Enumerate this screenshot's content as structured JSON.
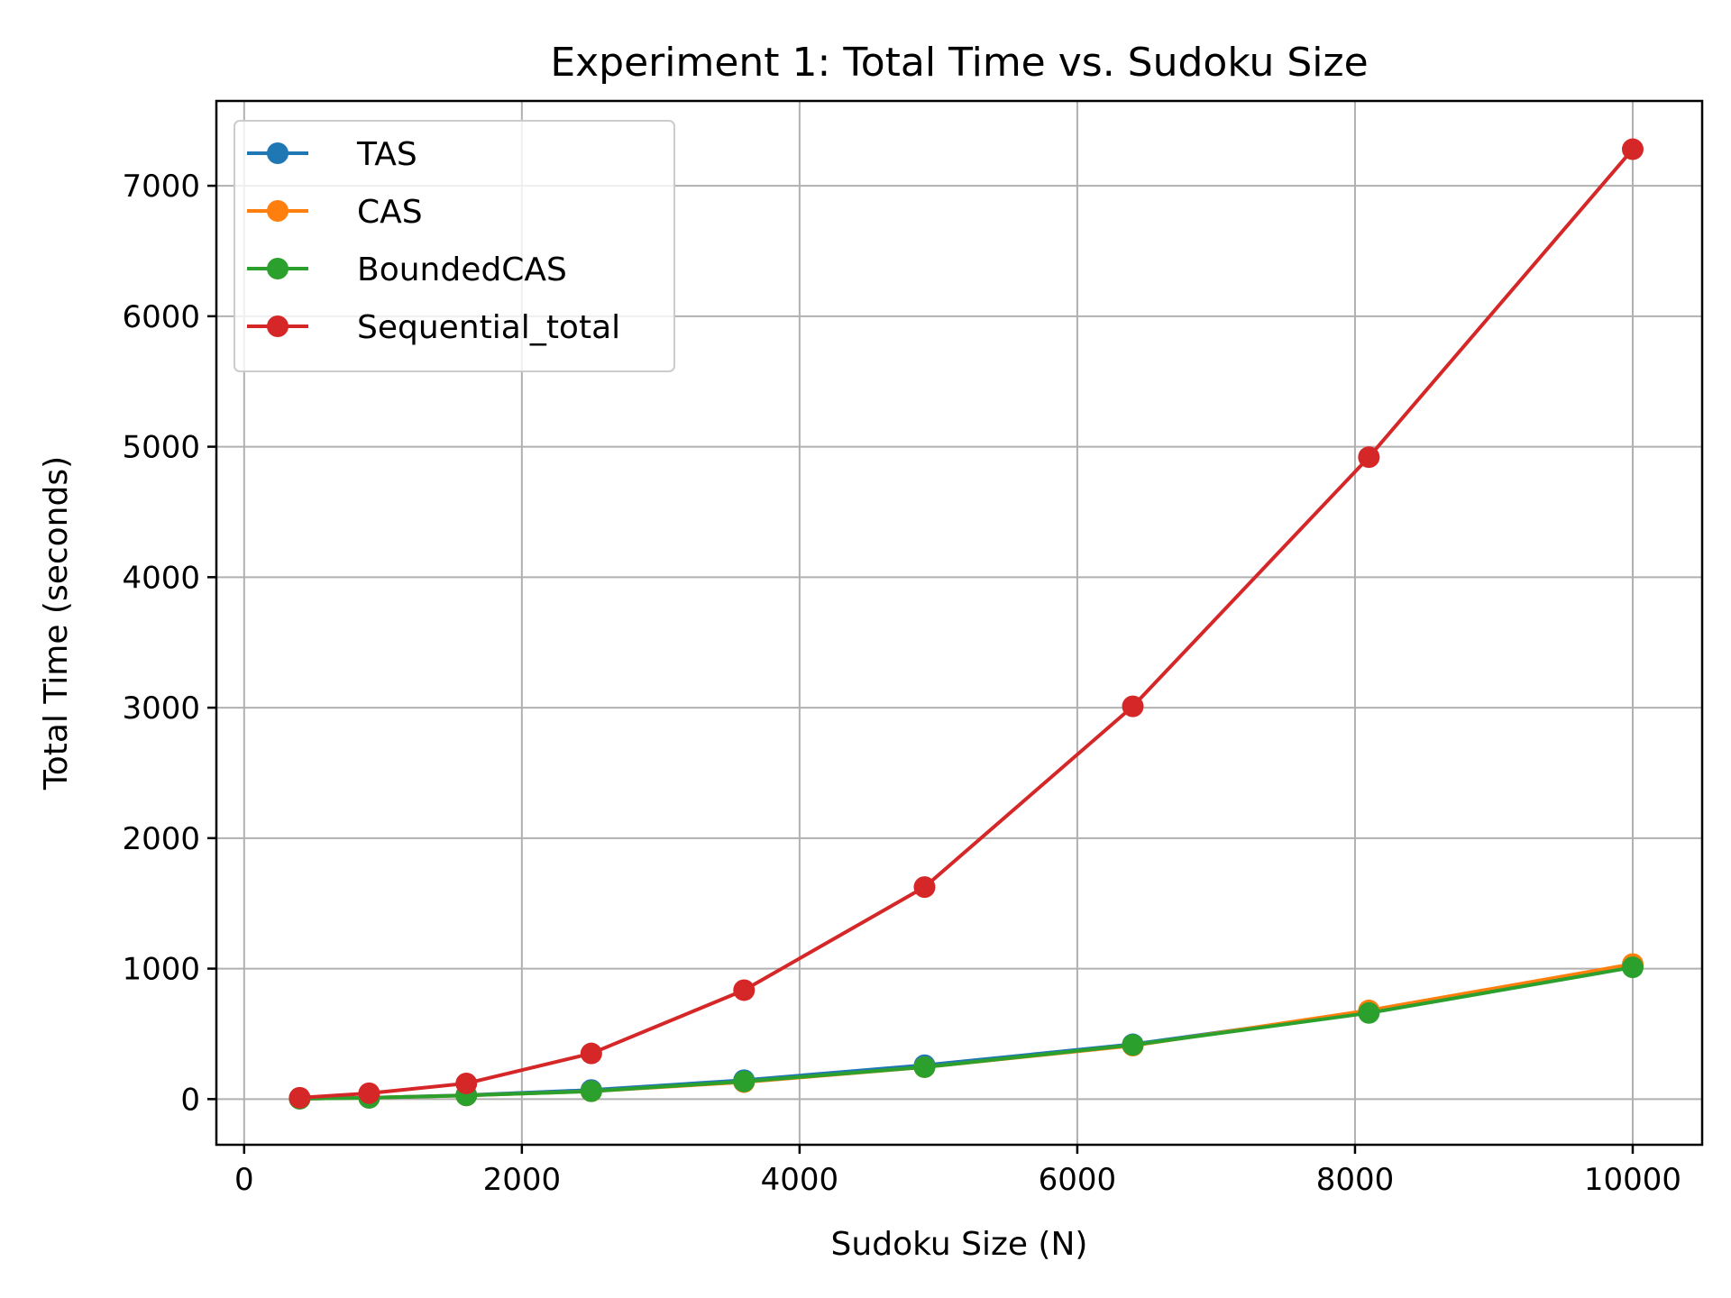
{
  "chart_data": {
    "type": "line",
    "title": "Experiment 1: Total Time vs. Sudoku Size",
    "xlabel": "Sudoku Size (N)",
    "ylabel": "Total Time (seconds)",
    "xlim": [
      -200,
      10500
    ],
    "ylim": [
      -350,
      7650
    ],
    "xticks": [
      0,
      2000,
      4000,
      6000,
      8000,
      10000
    ],
    "yticks": [
      0,
      1000,
      2000,
      3000,
      4000,
      5000,
      6000,
      7000
    ],
    "grid": true,
    "legend_position": "top-left",
    "x": [
      400,
      900,
      1600,
      2500,
      3600,
      4900,
      6400,
      8100,
      10000
    ],
    "series": [
      {
        "name": "TAS",
        "color": "#1f77b4",
        "values": [
          3,
          10,
          30,
          70,
          145,
          260,
          420,
          670,
          1020
        ]
      },
      {
        "name": "CAS",
        "color": "#ff7f0e",
        "values": [
          3,
          10,
          28,
          60,
          130,
          245,
          410,
          680,
          1035
        ]
      },
      {
        "name": "BoundedCAS",
        "color": "#2ca02c",
        "values": [
          3,
          10,
          28,
          60,
          135,
          245,
          415,
          660,
          1010
        ]
      },
      {
        "name": "Sequential_total",
        "color": "#d62728",
        "values": [
          10,
          45,
          120,
          350,
          835,
          1625,
          3010,
          4920,
          7280
        ]
      }
    ]
  }
}
